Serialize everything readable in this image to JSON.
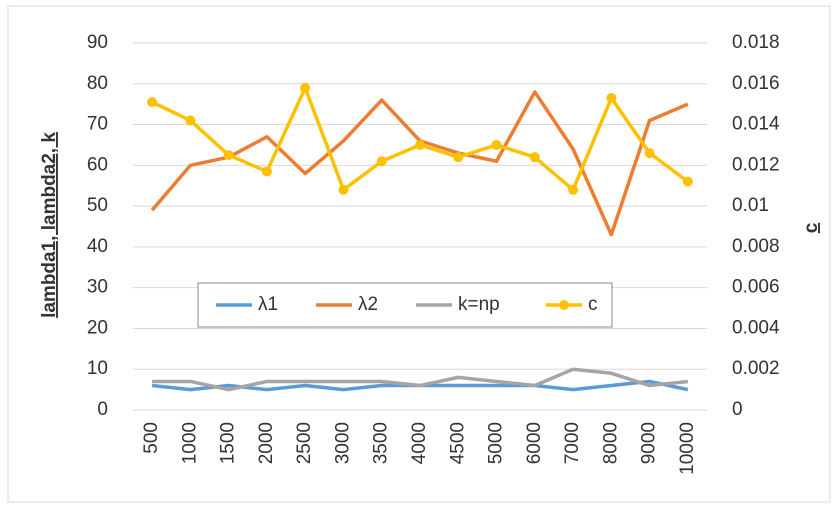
{
  "chart_data": {
    "type": "line",
    "categories": [
      "500",
      "1000",
      "1500",
      "2000",
      "2500",
      "3000",
      "3500",
      "4000",
      "4500",
      "5000",
      "6000",
      "7000",
      "8000",
      "9000",
      "10000"
    ],
    "series": [
      {
        "name": "λ1",
        "color": "#5b9bd5",
        "values": [
          6,
          5,
          6,
          5,
          6,
          5,
          6,
          6,
          6,
          6,
          6,
          5,
          6,
          7,
          5
        ]
      },
      {
        "name": "λ2",
        "color": "#ed7d31",
        "values": [
          49,
          60,
          62,
          67,
          58,
          66,
          76,
          66,
          63,
          61,
          78,
          64,
          43,
          71,
          75
        ]
      },
      {
        "name": "k=np",
        "color": "#a5a5a5",
        "values": [
          7,
          7,
          5,
          7,
          7,
          7,
          7,
          6,
          8,
          7,
          6,
          10,
          9,
          6,
          7
        ]
      },
      {
        "name": "c",
        "color": "#ffc000",
        "axis": "y2",
        "markers": true,
        "values": [
          0.0151,
          0.0142,
          0.0125,
          0.0117,
          0.0158,
          0.0108,
          0.0122,
          0.013,
          0.0124,
          0.013,
          0.0124,
          0.0108,
          0.0153,
          0.0126,
          0.0112
        ]
      }
    ],
    "ylabel": "lambda1, lambda2, k",
    "y2label": "c",
    "ylim": [
      0,
      90
    ],
    "yticks": [
      0,
      10,
      20,
      30,
      40,
      50,
      60,
      70,
      80,
      90
    ],
    "y2lim": [
      0,
      0.018
    ],
    "y2ticks": [
      0,
      0.002,
      0.004,
      0.006,
      0.008,
      0.01,
      0.012,
      0.014,
      0.016,
      0.018
    ],
    "grid": true,
    "legend": "center"
  }
}
